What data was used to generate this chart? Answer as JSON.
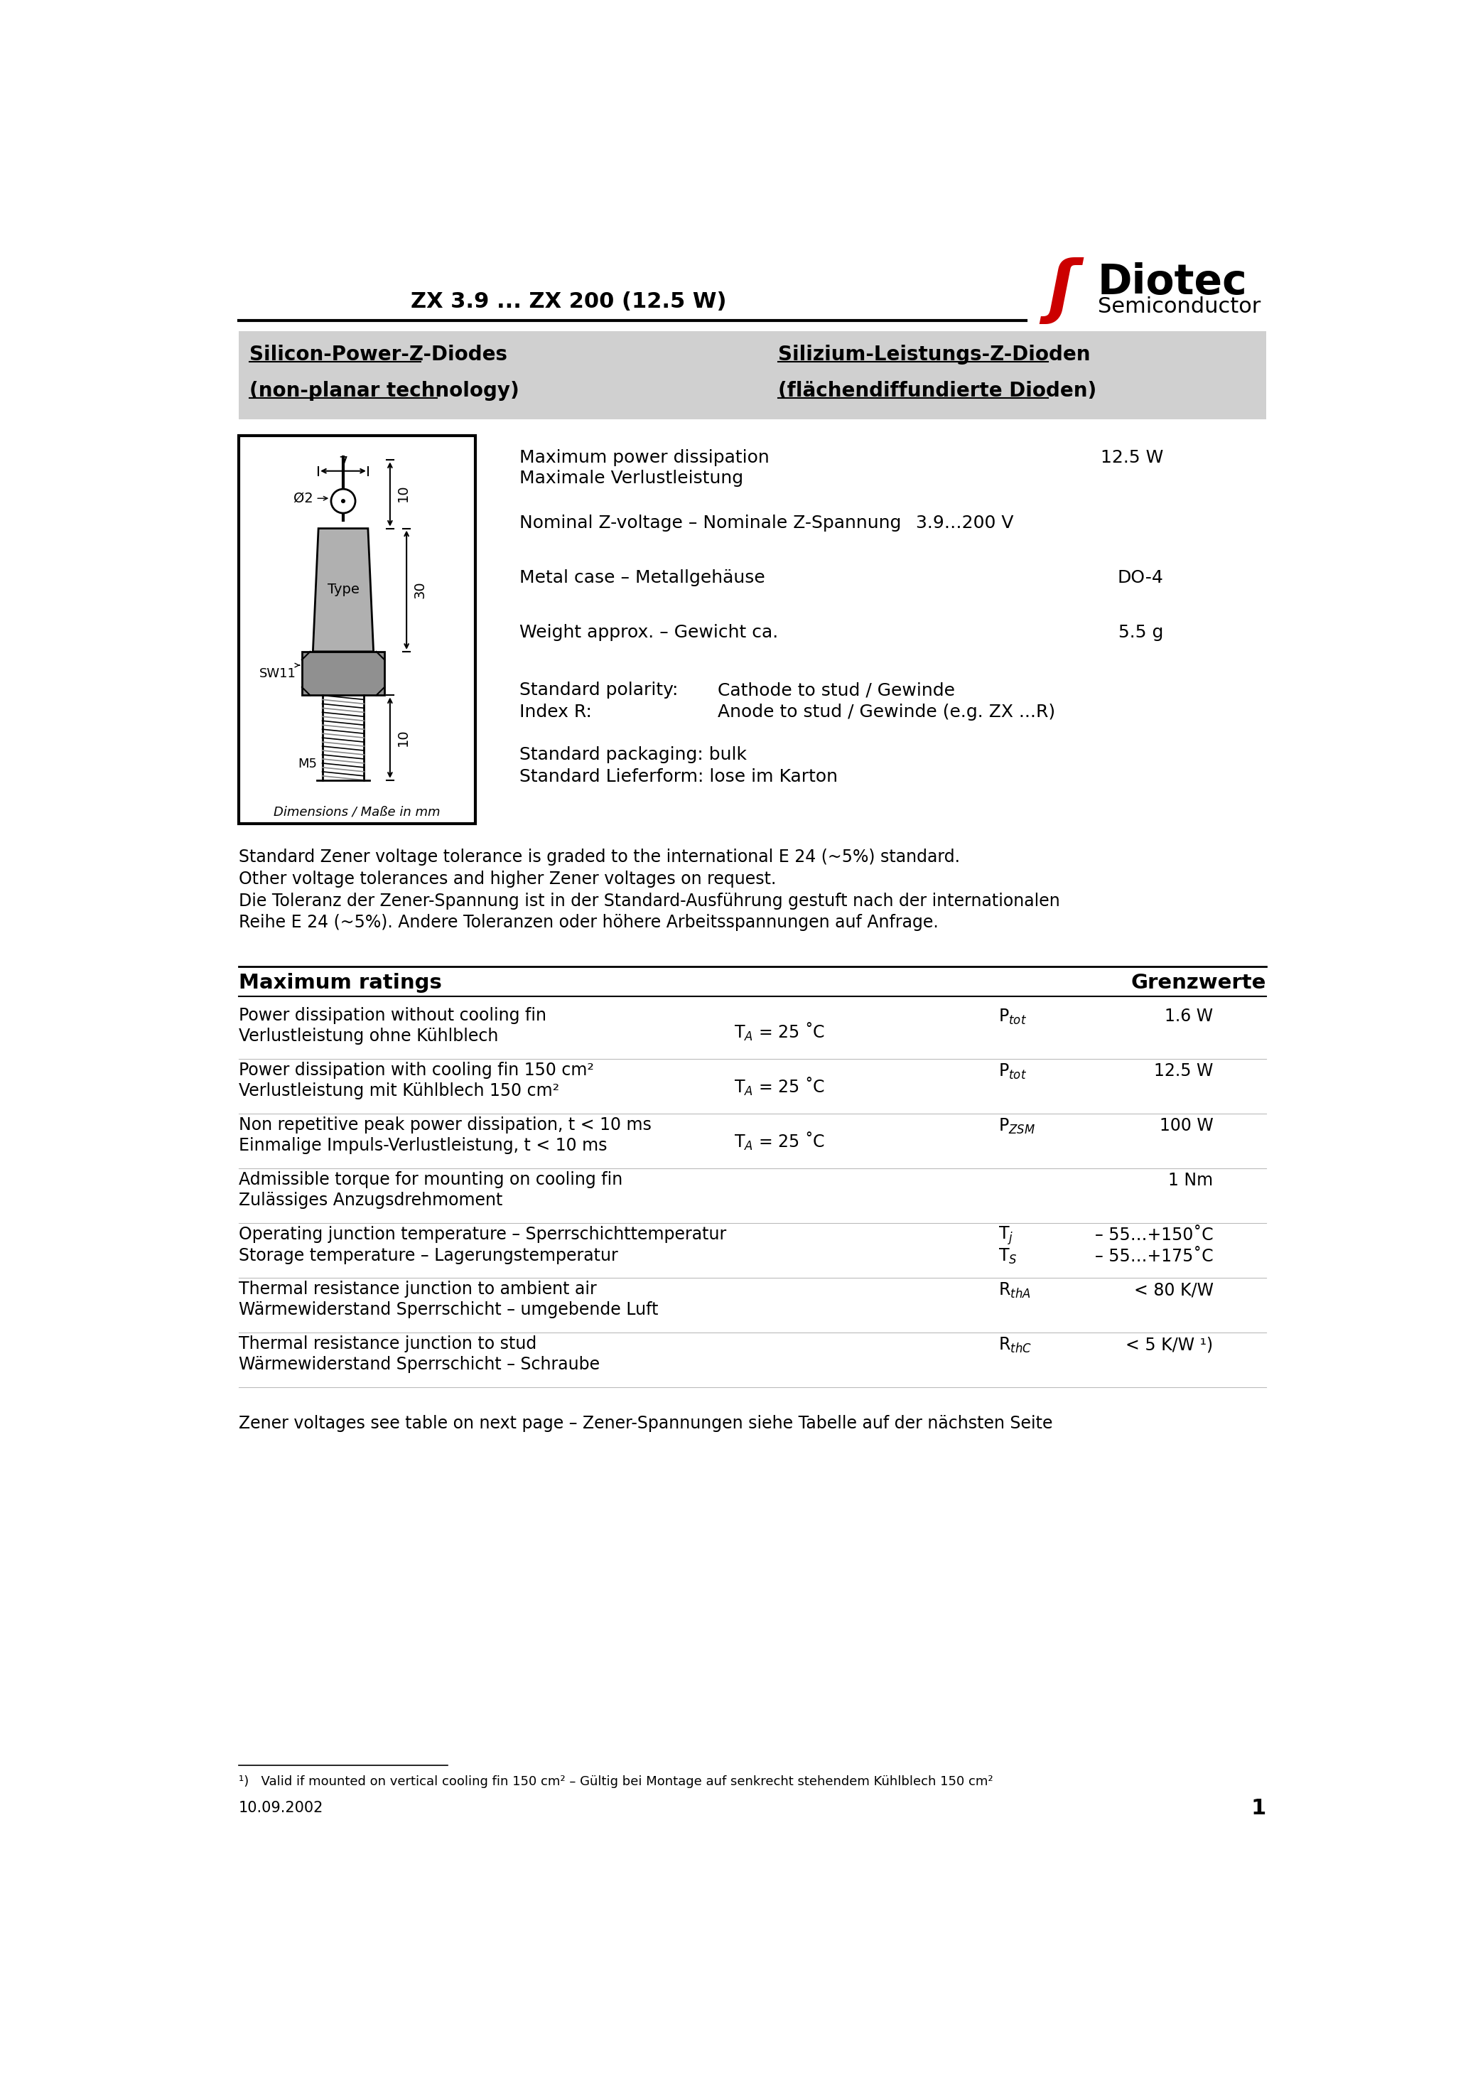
{
  "title": "ZX 3.9 ... ZX 200 (12.5 W)",
  "bg_color": "#ffffff",
  "header_bg": "#d0d0d0",
  "logo_text": "Diotec",
  "logo_sub": "Semiconductor",
  "logo_color": "#cc0000",
  "left_title_line1": "Silicon-Power-Z-Diodes",
  "left_title_line2": "(non-planar technology)",
  "right_title_line1": "Silizium-Leistungs-Z-Dioden",
  "right_title_line2": "(flächendiffundierte Dioden)",
  "note1": "Standard Zener voltage tolerance is graded to the international E 24 (~5%) standard.",
  "note2": "Other voltage tolerances and higher Zener voltages on request.",
  "note3": "Die Toleranz der Zener-Spannung ist in der Standard-Ausführung gestuft nach der internationalen",
  "note4": "Reihe E 24 (~5%). Andere Toleranzen oder höhere Arbeitsspannungen auf Anfrage.",
  "max_ratings_title": "Maximum ratings",
  "max_ratings_title_right": "Grenzwerte",
  "zener_note": "Zener voltages see table on next page – Zener-Spannungen siehe Tabelle auf der nächsten Seite",
  "footnote": "¹)   Valid if mounted on vertical cooling fin 150 cm² – Gültig bei Montage auf senkrecht stehendem Kühlblech 150 cm²",
  "date": "10.09.2002",
  "page": "1"
}
